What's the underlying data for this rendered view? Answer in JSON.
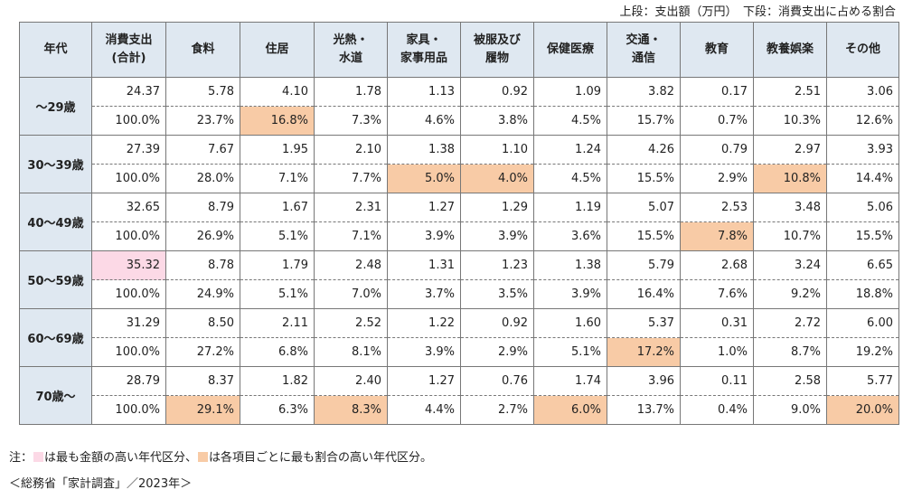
{
  "legend": "上段：支出額（万円）　下段：消費支出に占める割合",
  "headers": [
    {
      "l1": "年代",
      "l2": ""
    },
    {
      "l1": "消費支出",
      "l2": "(合計)"
    },
    {
      "l1": "食料",
      "l2": ""
    },
    {
      "l1": "住居",
      "l2": ""
    },
    {
      "l1": "光熱・",
      "l2": "水道"
    },
    {
      "l1": "家具・",
      "l2": "家事用品"
    },
    {
      "l1": "被服及び",
      "l2": "履物"
    },
    {
      "l1": "保健医療",
      "l2": ""
    },
    {
      "l1": "交通・",
      "l2": "通信"
    },
    {
      "l1": "教育",
      "l2": ""
    },
    {
      "l1": "教養娯楽",
      "l2": ""
    },
    {
      "l1": "その他",
      "l2": ""
    }
  ],
  "rows": [
    {
      "age": "〜29歳",
      "amounts": [
        "24.37",
        "5.78",
        "4.10",
        "1.78",
        "1.13",
        "0.92",
        "1.09",
        "3.82",
        "0.17",
        "2.51",
        "3.06"
      ],
      "shares": [
        "100.0%",
        "23.7%",
        "16.8%",
        "7.3%",
        "4.6%",
        "3.8%",
        "4.5%",
        "15.7%",
        "0.7%",
        "10.3%",
        "12.6%"
      ]
    },
    {
      "age": "30〜39歳",
      "amounts": [
        "27.39",
        "7.67",
        "1.95",
        "2.10",
        "1.38",
        "1.10",
        "1.24",
        "4.26",
        "0.79",
        "2.97",
        "3.93"
      ],
      "shares": [
        "100.0%",
        "28.0%",
        "7.1%",
        "7.7%",
        "5.0%",
        "4.0%",
        "4.5%",
        "15.5%",
        "2.9%",
        "10.8%",
        "14.4%"
      ]
    },
    {
      "age": "40〜49歳",
      "amounts": [
        "32.65",
        "8.79",
        "1.67",
        "2.31",
        "1.27",
        "1.29",
        "1.19",
        "5.07",
        "2.53",
        "3.48",
        "5.06"
      ],
      "shares": [
        "100.0%",
        "26.9%",
        "5.1%",
        "7.1%",
        "3.9%",
        "3.9%",
        "3.6%",
        "15.5%",
        "7.8%",
        "10.7%",
        "15.5%"
      ]
    },
    {
      "age": "50〜59歳",
      "amounts": [
        "35.32",
        "8.78",
        "1.79",
        "2.48",
        "1.31",
        "1.23",
        "1.38",
        "5.79",
        "2.68",
        "3.24",
        "6.65"
      ],
      "shares": [
        "100.0%",
        "24.9%",
        "5.1%",
        "7.0%",
        "3.7%",
        "3.5%",
        "3.9%",
        "16.4%",
        "7.6%",
        "9.2%",
        "18.8%"
      ]
    },
    {
      "age": "60〜69歳",
      "amounts": [
        "31.29",
        "8.50",
        "2.11",
        "2.52",
        "1.22",
        "0.92",
        "1.60",
        "5.37",
        "0.31",
        "2.72",
        "6.00"
      ],
      "shares": [
        "100.0%",
        "27.2%",
        "6.8%",
        "8.1%",
        "3.9%",
        "2.9%",
        "5.1%",
        "17.2%",
        "1.0%",
        "8.7%",
        "19.2%"
      ]
    },
    {
      "age": "70歳〜",
      "amounts": [
        "28.79",
        "8.37",
        "1.82",
        "2.40",
        "1.27",
        "0.76",
        "1.74",
        "3.96",
        "0.11",
        "2.58",
        "5.77"
      ],
      "shares": [
        "100.0%",
        "29.1%",
        "6.3%",
        "8.3%",
        "4.4%",
        "2.7%",
        "6.0%",
        "13.7%",
        "0.4%",
        "9.0%",
        "20.0%"
      ]
    }
  ],
  "highlight_max_amount": [
    3,
    0
  ],
  "highlight_max_share": [
    [
      0,
      2
    ],
    [
      1,
      4
    ],
    [
      1,
      5
    ],
    [
      1,
      9
    ],
    [
      2,
      8
    ],
    [
      4,
      7
    ],
    [
      5,
      1
    ],
    [
      5,
      3
    ],
    [
      5,
      6
    ],
    [
      5,
      10
    ]
  ],
  "colors": {
    "pink": "#fcd9e6",
    "orange": "#f8cba6",
    "header": "#dfe8f1"
  },
  "note": {
    "prefix": "注：",
    "pink_text": "は最も金額の高い年代区分、",
    "orange_text": "は各項目ごとに最も割合の高い年代区分。"
  },
  "source": "＜総務省「家計調査」／2023年＞"
}
